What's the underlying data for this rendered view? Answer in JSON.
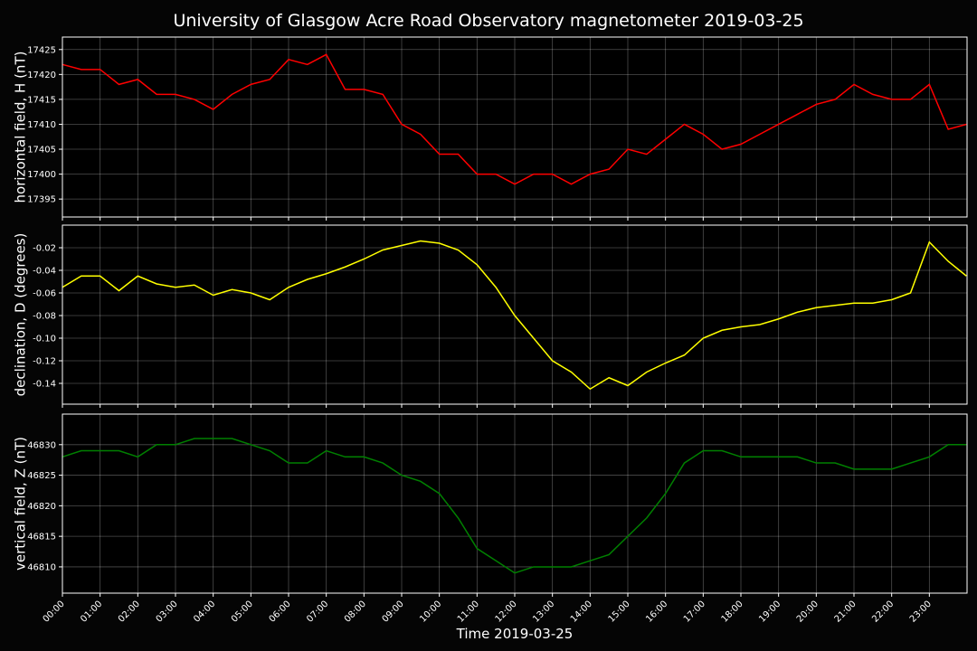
{
  "chart_data": [
    {
      "type": "line",
      "title": "University of Glasgow Acre Road Observatory magnetometer 2019-03-25",
      "ylabel": "horizontal field, H (nT)",
      "color": "#ff0000",
      "x": [
        "00:00",
        "00:30",
        "01:00",
        "01:30",
        "02:00",
        "02:30",
        "03:00",
        "03:30",
        "04:00",
        "04:30",
        "05:00",
        "05:30",
        "06:00",
        "06:30",
        "07:00",
        "07:30",
        "08:00",
        "08:30",
        "09:00",
        "09:30",
        "10:00",
        "10:30",
        "11:00",
        "11:30",
        "12:00",
        "12:30",
        "13:00",
        "13:30",
        "14:00",
        "14:30",
        "15:00",
        "15:30",
        "16:00",
        "16:30",
        "17:00",
        "17:30",
        "18:00",
        "18:30",
        "19:00",
        "19:30",
        "20:00",
        "20:30",
        "21:00",
        "21:30",
        "22:00",
        "22:30",
        "23:00",
        "23:30",
        "23:59"
      ],
      "values": [
        17422,
        17421,
        17421,
        17418,
        17419,
        17416,
        17416,
        17415,
        17413,
        17416,
        17418,
        17419,
        17423,
        17422,
        17424,
        17417,
        17417,
        17416,
        17410,
        17408,
        17404,
        17404,
        17400,
        17400,
        17398,
        17400,
        17400,
        17398,
        17400,
        17401,
        17405,
        17404,
        17407,
        17410,
        17408,
        17405,
        17406,
        17408,
        17410,
        17412,
        17414,
        17415,
        17418,
        17416,
        17415,
        17415,
        17418,
        17409,
        17410
      ],
      "xlim": [
        "00:00",
        "24:00"
      ],
      "ylim": [
        17391.4,
        17427.5
      ],
      "yticks": [
        17395,
        17400,
        17405,
        17410,
        17415,
        17420,
        17425
      ],
      "grid": true,
      "xticks": [
        "00:00",
        "01:00",
        "02:00",
        "03:00",
        "04:00",
        "05:00",
        "06:00",
        "07:00",
        "08:00",
        "09:00",
        "10:00",
        "11:00",
        "12:00",
        "13:00",
        "14:00",
        "15:00",
        "16:00",
        "17:00",
        "18:00",
        "19:00",
        "20:00",
        "21:00",
        "22:00",
        "23:00"
      ]
    },
    {
      "type": "line",
      "ylabel": "declination, D (degrees)",
      "color": "#ffff00",
      "x": [
        "00:00",
        "00:30",
        "01:00",
        "01:30",
        "02:00",
        "02:30",
        "03:00",
        "03:30",
        "04:00",
        "04:30",
        "05:00",
        "05:30",
        "06:00",
        "06:30",
        "07:00",
        "07:30",
        "08:00",
        "08:30",
        "09:00",
        "09:30",
        "10:00",
        "10:30",
        "11:00",
        "11:30",
        "12:00",
        "12:30",
        "13:00",
        "13:30",
        "14:00",
        "14:30",
        "15:00",
        "15:30",
        "16:00",
        "16:30",
        "17:00",
        "17:30",
        "18:00",
        "18:30",
        "19:00",
        "19:30",
        "20:00",
        "20:30",
        "21:00",
        "21:30",
        "22:00",
        "22:30",
        "23:00",
        "23:30",
        "23:59"
      ],
      "values": [
        -0.055,
        -0.045,
        -0.045,
        -0.058,
        -0.045,
        -0.052,
        -0.055,
        -0.053,
        -0.062,
        -0.057,
        -0.06,
        -0.066,
        -0.055,
        -0.048,
        -0.043,
        -0.037,
        -0.03,
        -0.022,
        -0.018,
        -0.014,
        -0.016,
        -0.022,
        -0.035,
        -0.055,
        -0.08,
        -0.1,
        -0.12,
        -0.13,
        -0.145,
        -0.135,
        -0.142,
        -0.13,
        -0.122,
        -0.115,
        -0.1,
        -0.093,
        -0.09,
        -0.088,
        -0.083,
        -0.077,
        -0.073,
        -0.071,
        -0.069,
        -0.069,
        -0.066,
        -0.06,
        -0.015,
        -0.032,
        -0.045
      ],
      "xlim": [
        "00:00",
        "24:00"
      ],
      "ylim": [
        -0.1584,
        0
      ],
      "yticks": [
        -0.14,
        -0.12,
        {
          "value": -0.1,
          "label": "-0.10"
        },
        -0.08,
        -0.06,
        -0.04,
        -0.02
      ],
      "grid": true,
      "xticks": [
        "00:00",
        "01:00",
        "02:00",
        "03:00",
        "04:00",
        "05:00",
        "06:00",
        "07:00",
        "08:00",
        "09:00",
        "10:00",
        "11:00",
        "12:00",
        "13:00",
        "14:00",
        "15:00",
        "16:00",
        "17:00",
        "18:00",
        "19:00",
        "20:00",
        "21:00",
        "22:00",
        "23:00"
      ]
    },
    {
      "type": "line",
      "ylabel": "vertical field, Z (nT)",
      "xlabel": "Time 2019-03-25",
      "color": "#008000",
      "x": [
        "00:00",
        "00:30",
        "01:00",
        "01:30",
        "02:00",
        "02:30",
        "03:00",
        "03:30",
        "04:00",
        "04:30",
        "05:00",
        "05:30",
        "06:00",
        "06:30",
        "07:00",
        "07:30",
        "08:00",
        "08:30",
        "09:00",
        "09:30",
        "10:00",
        "10:30",
        "11:00",
        "11:30",
        "12:00",
        "12:30",
        "13:00",
        "13:30",
        "14:00",
        "14:30",
        "15:00",
        "15:30",
        "16:00",
        "16:30",
        "17:00",
        "17:30",
        "18:00",
        "18:30",
        "19:00",
        "19:30",
        "20:00",
        "20:30",
        "21:00",
        "21:30",
        "22:00",
        "22:30",
        "23:00",
        "23:30",
        "23:59"
      ],
      "values": [
        46828,
        46829,
        46829,
        46829,
        46828,
        46830,
        46830,
        46831,
        46831,
        46831,
        46830,
        46829,
        46827,
        46827,
        46829,
        46828,
        46828,
        46827,
        46825,
        46824,
        46822,
        46818,
        46813,
        46811,
        46809,
        46810,
        46810,
        46810,
        46811,
        46812,
        46815,
        46818,
        46822,
        46827,
        46829,
        46829,
        46828,
        46828,
        46828,
        46828,
        46827,
        46827,
        46826,
        46826,
        46826,
        46827,
        46828,
        46830,
        46830
      ],
      "xlim": [
        "00:00",
        "24:00"
      ],
      "ylim": [
        46805.7,
        46835.0
      ],
      "yticks": [
        46810,
        46815,
        46820,
        46825,
        46830
      ],
      "grid": true,
      "xtick_labels": true,
      "xticks": [
        "00:00",
        "01:00",
        "02:00",
        "03:00",
        "04:00",
        "05:00",
        "06:00",
        "07:00",
        "08:00",
        "09:00",
        "10:00",
        "11:00",
        "12:00",
        "13:00",
        "14:00",
        "15:00",
        "16:00",
        "17:00",
        "18:00",
        "19:00",
        "20:00",
        "21:00",
        "22:00",
        "23:00"
      ]
    }
  ]
}
